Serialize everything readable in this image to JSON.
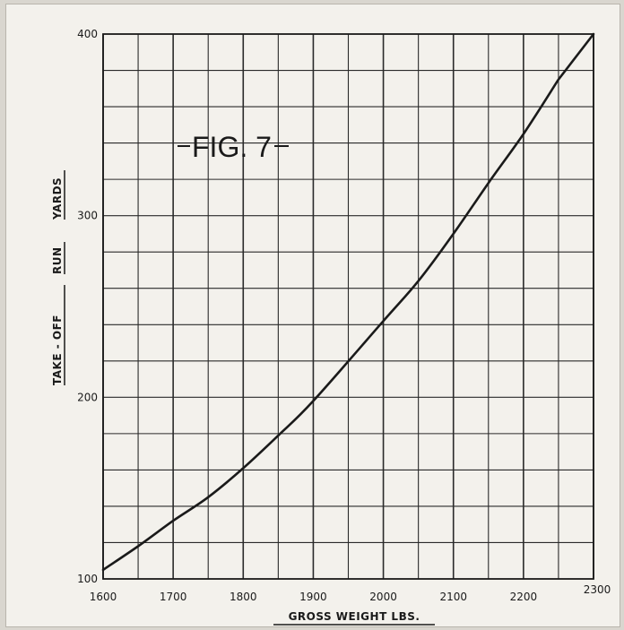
{
  "chart_data": {
    "type": "line",
    "annotation": "FIG. 7",
    "xlabel": "GROSS WEIGHT LBS.",
    "ylabel_parts": [
      "TAKE - OFF",
      "RUN",
      "YARDS"
    ],
    "xlim": [
      1600,
      2300
    ],
    "ylim": [
      100,
      400
    ],
    "x_tick_labels": [
      "1600",
      "1700",
      "1800",
      "1900",
      "2000",
      "2100",
      "2200",
      "2300"
    ],
    "y_tick_labels": [
      "100",
      "200",
      "300",
      "400"
    ],
    "x_ticks": [
      1600,
      1700,
      1800,
      1900,
      2000,
      2100,
      2200,
      2300
    ],
    "y_ticks": [
      100,
      200,
      300,
      400
    ],
    "x_grid_step": 50,
    "y_grid_step": 20,
    "grid": true,
    "series": [
      {
        "x": [
          1600,
          1650,
          1700,
          1750,
          1800,
          1850,
          1900,
          2000,
          2050,
          2100,
          2150,
          2200,
          2250
        ],
        "values": [
          105,
          118,
          132,
          145,
          161,
          179,
          198,
          242,
          264,
          290,
          318,
          345,
          375
        ]
      }
    ]
  }
}
